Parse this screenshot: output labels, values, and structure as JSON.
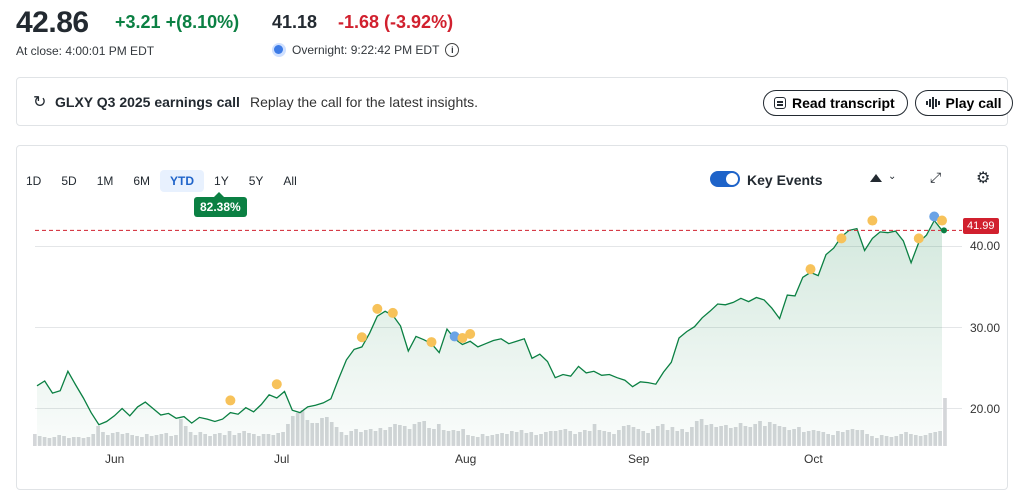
{
  "quote": {
    "price": "42.86",
    "change": "+3.21",
    "change_pct": "+(8.10%)",
    "close_time": "At close: 4:00:01 PM EDT",
    "overnight_price": "41.18",
    "overnight_change": "-1.68",
    "overnight_change_pct": "(-3.92%)",
    "overnight_time": "Overnight: 9:22:42 PM EDT",
    "moon_icon": "moon-icon",
    "info_icon": "info-icon"
  },
  "earnings": {
    "title": "GLXY Q3 2025 earnings call",
    "subtitle": "Replay the call for the latest insights.",
    "read_label": "Read transcript",
    "play_label": "Play call",
    "replay_icon": "↻"
  },
  "toolbar": {
    "ranges": [
      "1D",
      "5D",
      "1M",
      "6M",
      "YTD",
      "1Y",
      "5Y",
      "All"
    ],
    "active_range": "YTD",
    "pct_badge": "82.38%",
    "key_events_label": "Key Events",
    "key_events_on": true,
    "expand_icon": "⤢",
    "gear_icon": "⚙",
    "chevron_icon": "⌄"
  },
  "chart_data": {
    "type": "area",
    "y_ticks": [
      "40.00",
      "30.00",
      "20.00"
    ],
    "x_ticks": [
      "Jun",
      "Jul",
      "Aug",
      "Sep",
      "Oct"
    ],
    "ylim": [
      15.5,
      44.5
    ],
    "last_price": 41.99,
    "last_label": "41.99",
    "prices": [
      22.8,
      23.4,
      21.9,
      22.2,
      24.6,
      22.9,
      21.3,
      19.5,
      18.0,
      18.4,
      19.1,
      20.0,
      19.1,
      20.2,
      20.8,
      20.0,
      19.2,
      19.4,
      18.8,
      19.0,
      18.2,
      18.9,
      18.7,
      18.4,
      18.7,
      19.5,
      19.3,
      20.1,
      19.6,
      20.5,
      21.7,
      21.3,
      22.1,
      19.8,
      19.5,
      20.2,
      20.4,
      20.7,
      21.2,
      23.7,
      26.0,
      27.3,
      27.6,
      29.3,
      31.4,
      32.0,
      31.5,
      30.2,
      27.1,
      28.9,
      28.5,
      28.0,
      26.9,
      29.8,
      28.6,
      27.9,
      28.3,
      27.6,
      28.0,
      28.4,
      28.6,
      28.0,
      28.3,
      28.6,
      26.2,
      26.7,
      25.8,
      23.8,
      24.2,
      24.0,
      25.2,
      24.4,
      24.6,
      24.1,
      24.2,
      23.8,
      23.5,
      22.7,
      23.3,
      23.2,
      23.0,
      24.5,
      25.7,
      28.7,
      29.5,
      30.1,
      31.2,
      32.0,
      32.9,
      32.8,
      33.1,
      33.6,
      33.2,
      33.7,
      33.4,
      32.4,
      31.1,
      34.0,
      33.9,
      36.2,
      36.8,
      36.4,
      39.0,
      39.8,
      41.2,
      42.0,
      42.2,
      39.5,
      41.0,
      41.8,
      41.7,
      41.9,
      40.7,
      38.0,
      40.5,
      41.4,
      43.2,
      41.99
    ],
    "volumes": [
      12,
      10,
      9,
      8,
      9,
      11,
      10,
      8,
      9,
      9,
      8,
      9,
      12,
      20,
      14,
      11,
      13,
      14,
      12,
      13,
      11,
      10,
      9,
      12,
      10,
      11,
      12,
      13,
      10,
      11,
      27,
      20,
      14,
      11,
      14,
      12,
      10,
      12,
      13,
      11,
      15,
      11,
      13,
      15,
      13,
      12,
      10,
      12,
      12,
      11,
      13,
      14,
      22,
      30,
      33,
      36,
      26,
      23,
      23,
      28,
      29,
      24,
      19,
      14,
      11,
      15,
      17,
      14,
      16,
      17,
      15,
      18,
      16,
      19,
      22,
      21,
      20,
      17,
      22,
      24,
      25,
      18,
      17,
      22,
      16,
      15,
      16,
      15,
      17,
      11,
      10,
      9,
      12,
      10,
      11,
      12,
      13,
      12,
      15,
      14,
      16,
      13,
      14,
      11,
      12,
      14,
      15,
      15,
      16,
      17,
      15,
      12,
      14,
      16,
      15,
      22,
      16,
      15,
      14,
      12,
      16,
      20,
      21,
      19,
      17,
      15,
      13,
      17,
      20,
      22,
      16,
      19,
      15,
      17,
      14,
      19,
      25,
      27,
      21,
      22,
      19,
      20,
      21,
      18,
      19,
      23,
      20,
      19,
      22,
      25,
      20,
      24,
      22,
      20,
      19,
      16,
      17,
      19,
      14,
      15,
      16,
      15,
      14,
      12,
      11,
      15,
      14,
      16,
      17,
      16,
      16,
      12,
      10,
      8,
      11,
      10,
      9,
      10,
      12,
      14,
      12,
      11,
      10,
      11,
      13,
      14,
      15,
      48
    ],
    "events": [
      {
        "i": 25,
        "v": 21.0,
        "kind": "yellow"
      },
      {
        "i": 31,
        "v": 23.0,
        "kind": "yellow"
      },
      {
        "i": 42,
        "v": 28.8,
        "kind": "yellow"
      },
      {
        "i": 44,
        "v": 32.3,
        "kind": "yellow"
      },
      {
        "i": 46,
        "v": 31.8,
        "kind": "yellow"
      },
      {
        "i": 51,
        "v": 28.2,
        "kind": "yellow"
      },
      {
        "i": 54,
        "v": 28.9,
        "kind": "blue"
      },
      {
        "i": 55,
        "v": 28.7,
        "kind": "yellow"
      },
      {
        "i": 56,
        "v": 29.2,
        "kind": "yellow"
      },
      {
        "i": 100,
        "v": 37.2,
        "kind": "yellow"
      },
      {
        "i": 104,
        "v": 41.0,
        "kind": "yellow"
      },
      {
        "i": 108,
        "v": 43.2,
        "kind": "yellow"
      },
      {
        "i": 114,
        "v": 41.0,
        "kind": "yellow"
      },
      {
        "i": 116,
        "v": 43.7,
        "kind": "blue"
      },
      {
        "i": 117,
        "v": 43.2,
        "kind": "yellow"
      }
    ],
    "colors": {
      "line": "#0b8043",
      "fill": "#0b8043",
      "up": "#0b8043",
      "down": "#d1202e",
      "event_yellow": "#f7c25a",
      "event_blue": "#6aa3e6",
      "volume": "#d4d6d9"
    }
  }
}
